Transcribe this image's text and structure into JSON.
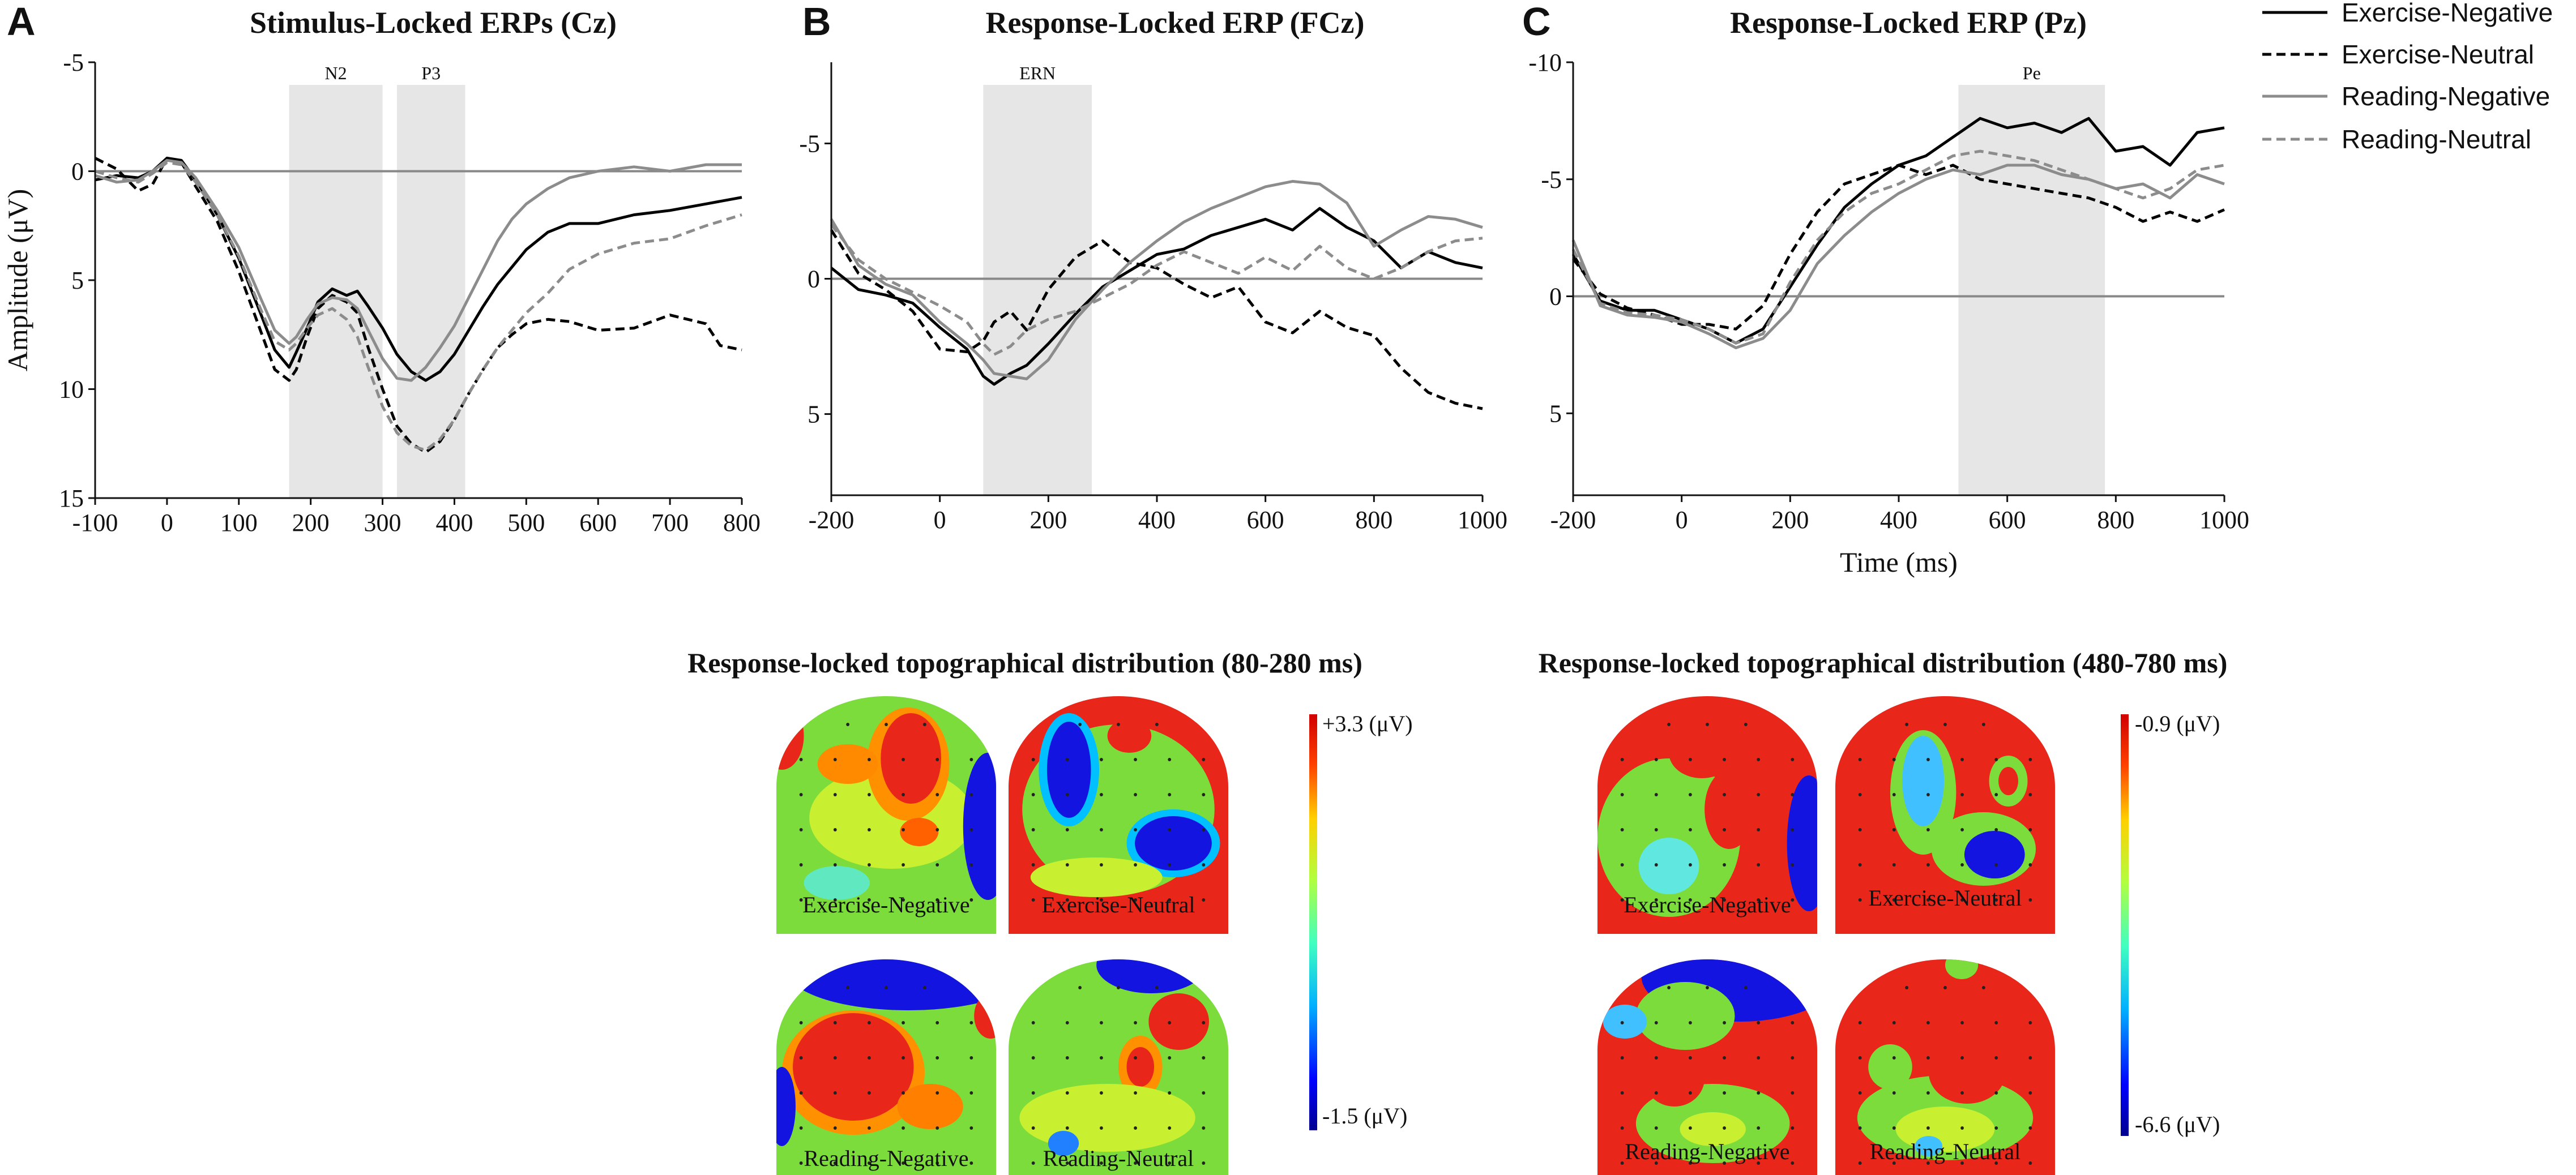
{
  "chart_data": [
    {
      "panel_letter": "A",
      "type": "line",
      "title": "Stimulus-Locked ERPs (Cz)",
      "xlabel": "",
      "ylabel": "Amplitude (μV)",
      "xlim": [
        -100,
        800
      ],
      "ylim": [
        -5,
        15
      ],
      "y_inverted": true,
      "xticks": [
        "-100",
        "0",
        "100",
        "200",
        "300",
        "400",
        "500",
        "600",
        "700",
        "800"
      ],
      "yticks": [
        "-5",
        "0",
        "5",
        "10",
        "15"
      ],
      "xtick_values": [
        -100,
        0,
        100,
        200,
        300,
        400,
        500,
        600,
        700,
        800
      ],
      "ytick_values": [
        -5,
        0,
        5,
        10,
        15
      ],
      "windows": [
        {
          "label": "N2",
          "x0": 170,
          "x1": 300
        },
        {
          "label": "P3",
          "x0": 320,
          "x1": 415
        }
      ],
      "series": [
        {
          "name": "Exercise-Negative",
          "x": [
            -100,
            -70,
            -40,
            -20,
            0,
            20,
            40,
            70,
            100,
            130,
            150,
            170,
            180,
            195,
            210,
            230,
            250,
            265,
            280,
            300,
            320,
            340,
            360,
            380,
            400,
            420,
            440,
            460,
            480,
            500,
            530,
            560,
            600,
            650,
            700,
            750,
            800
          ],
          "y": [
            0.4,
            0.2,
            0.3,
            0.0,
            -0.6,
            -0.5,
            0.4,
            2.0,
            4.0,
            6.5,
            8.2,
            9.0,
            8.3,
            7.2,
            6.0,
            5.4,
            5.7,
            5.5,
            6.2,
            7.2,
            8.4,
            9.2,
            9.6,
            9.2,
            8.4,
            7.3,
            6.2,
            5.2,
            4.4,
            3.6,
            2.8,
            2.4,
            2.4,
            2.0,
            1.8,
            1.5,
            1.2
          ]
        },
        {
          "name": "Exercise-Neutral",
          "x": [
            -100,
            -70,
            -40,
            -20,
            0,
            20,
            40,
            70,
            100,
            130,
            150,
            170,
            180,
            195,
            210,
            230,
            250,
            265,
            280,
            300,
            320,
            340,
            360,
            380,
            400,
            420,
            440,
            460,
            480,
            500,
            530,
            560,
            600,
            650,
            700,
            750,
            770,
            800
          ],
          "y": [
            -0.6,
            -0.1,
            0.9,
            0.6,
            -0.6,
            -0.4,
            0.7,
            2.3,
            4.6,
            7.3,
            9.1,
            9.6,
            9.1,
            7.6,
            6.3,
            5.7,
            6.0,
            6.5,
            8.1,
            10.0,
            11.7,
            12.5,
            12.9,
            12.4,
            11.4,
            10.2,
            9.1,
            8.1,
            7.5,
            7.0,
            6.8,
            6.9,
            7.3,
            7.2,
            6.6,
            7.0,
            8.0,
            8.2
          ]
        },
        {
          "name": "Reading-Negative",
          "x": [
            -100,
            -70,
            -40,
            -20,
            0,
            20,
            40,
            70,
            100,
            130,
            150,
            170,
            180,
            195,
            210,
            230,
            250,
            265,
            280,
            300,
            320,
            340,
            360,
            380,
            400,
            420,
            440,
            460,
            480,
            500,
            530,
            560,
            600,
            650,
            700,
            750,
            800
          ],
          "y": [
            0.2,
            0.5,
            0.4,
            0.0,
            -0.5,
            -0.4,
            0.3,
            1.8,
            3.5,
            5.8,
            7.3,
            7.9,
            7.6,
            6.8,
            6.1,
            5.8,
            5.9,
            6.3,
            7.3,
            8.6,
            9.5,
            9.6,
            9.0,
            8.1,
            7.1,
            5.8,
            4.5,
            3.2,
            2.2,
            1.5,
            0.8,
            0.3,
            0.0,
            -0.2,
            0.0,
            -0.3,
            -0.3
          ]
        },
        {
          "name": "Reading-Neutral",
          "x": [
            -100,
            -70,
            -40,
            -20,
            0,
            20,
            40,
            70,
            100,
            130,
            150,
            170,
            180,
            195,
            210,
            230,
            250,
            265,
            280,
            300,
            320,
            340,
            360,
            380,
            400,
            420,
            440,
            460,
            480,
            500,
            530,
            560,
            600,
            650,
            700,
            750,
            800
          ],
          "y": [
            0.0,
            0.3,
            0.5,
            0.1,
            -0.4,
            -0.3,
            0.5,
            2.0,
            3.9,
            6.3,
            7.8,
            8.2,
            7.9,
            7.2,
            6.6,
            6.3,
            6.8,
            7.6,
            9.0,
            10.8,
            12.0,
            12.6,
            12.8,
            12.3,
            11.4,
            10.2,
            9.1,
            8.1,
            7.3,
            6.5,
            5.6,
            4.5,
            3.8,
            3.3,
            3.1,
            2.5,
            2.0
          ]
        }
      ]
    },
    {
      "panel_letter": "B",
      "type": "line",
      "title": "Response-Locked ERP (FCz)",
      "xlabel": "",
      "ylabel": "",
      "xlim": [
        -200,
        1000
      ],
      "ylim": [
        -8,
        8
      ],
      "y_inverted": true,
      "xticks": [
        "-200",
        "0",
        "200",
        "400",
        "600",
        "800",
        "1000"
      ],
      "yticks": [
        "-5",
        "0",
        "5"
      ],
      "xtick_values": [
        -200,
        0,
        200,
        400,
        600,
        800,
        1000
      ],
      "ytick_values": [
        -5,
        0,
        5
      ],
      "windows": [
        {
          "label": "ERN",
          "x0": 80,
          "x1": 280
        }
      ],
      "series": [
        {
          "name": "Exercise-Negative",
          "x": [
            -200,
            -150,
            -100,
            -50,
            0,
            50,
            80,
            100,
            130,
            160,
            200,
            250,
            300,
            350,
            400,
            450,
            500,
            550,
            600,
            650,
            700,
            750,
            800,
            850,
            900,
            950,
            1000
          ],
          "y": [
            -0.4,
            0.4,
            0.6,
            0.9,
            1.8,
            2.6,
            3.6,
            3.9,
            3.5,
            3.2,
            2.4,
            1.3,
            0.3,
            -0.3,
            -0.9,
            -1.1,
            -1.6,
            -1.9,
            -2.2,
            -1.8,
            -2.6,
            -1.9,
            -1.4,
            -0.4,
            -1.0,
            -0.6,
            -0.4
          ]
        },
        {
          "name": "Exercise-Neutral",
          "x": [
            -200,
            -150,
            -100,
            -50,
            0,
            50,
            80,
            100,
            130,
            160,
            200,
            250,
            300,
            350,
            400,
            450,
            500,
            550,
            600,
            650,
            700,
            750,
            800,
            850,
            900,
            950,
            1000
          ],
          "y": [
            -1.8,
            -0.2,
            0.4,
            1.2,
            2.6,
            2.7,
            2.3,
            1.6,
            1.2,
            1.9,
            0.4,
            -0.8,
            -1.4,
            -0.6,
            -0.4,
            0.2,
            0.7,
            0.3,
            1.6,
            2.0,
            1.2,
            1.8,
            2.1,
            3.3,
            4.2,
            4.6,
            4.8
          ]
        },
        {
          "name": "Reading-Negative",
          "x": [
            -200,
            -150,
            -100,
            -50,
            0,
            50,
            80,
            100,
            130,
            160,
            200,
            250,
            300,
            350,
            400,
            450,
            500,
            550,
            600,
            650,
            700,
            750,
            800,
            850,
            900,
            950,
            1000
          ],
          "y": [
            -2.2,
            -0.5,
            0.2,
            0.6,
            1.6,
            2.4,
            3.0,
            3.5,
            3.6,
            3.7,
            3.0,
            1.5,
            0.4,
            -0.6,
            -1.4,
            -2.1,
            -2.6,
            -3.0,
            -3.4,
            -3.6,
            -3.5,
            -2.8,
            -1.2,
            -1.8,
            -2.3,
            -2.2,
            -1.9
          ]
        },
        {
          "name": "Reading-Neutral",
          "x": [
            -200,
            -150,
            -100,
            -50,
            0,
            50,
            80,
            100,
            130,
            160,
            200,
            250,
            300,
            350,
            400,
            450,
            500,
            550,
            600,
            650,
            700,
            750,
            800,
            850,
            900,
            950,
            1000
          ],
          "y": [
            -2.0,
            -0.7,
            0.0,
            0.5,
            1.0,
            1.6,
            2.4,
            2.8,
            2.5,
            1.9,
            1.5,
            1.2,
            0.7,
            0.2,
            -0.5,
            -1.0,
            -0.6,
            -0.2,
            -0.8,
            -0.3,
            -1.2,
            -0.4,
            0.0,
            -0.4,
            -1.0,
            -1.4,
            -1.5
          ]
        }
      ]
    },
    {
      "panel_letter": "C",
      "type": "line",
      "title": "Response-Locked ERP (Pz)",
      "xlabel": "Time (ms)",
      "ylabel": "",
      "xlim": [
        -200,
        1000
      ],
      "ylim": [
        -10,
        8.5
      ],
      "y_inverted": true,
      "xticks": [
        "-200",
        "0",
        "200",
        "400",
        "600",
        "800",
        "1000"
      ],
      "yticks": [
        "-10",
        "-5",
        "0",
        "5"
      ],
      "xtick_values": [
        -200,
        0,
        200,
        400,
        600,
        800,
        1000
      ],
      "ytick_values": [
        -10,
        -5,
        0,
        5
      ],
      "windows": [
        {
          "label": "Pe",
          "x0": 510,
          "x1": 780
        }
      ],
      "series": [
        {
          "name": "Exercise-Negative",
          "x": [
            -200,
            -150,
            -100,
            -50,
            0,
            50,
            100,
            150,
            200,
            250,
            300,
            350,
            400,
            450,
            500,
            550,
            600,
            650,
            700,
            750,
            800,
            850,
            900,
            950,
            1000
          ],
          "y": [
            -1.8,
            0.2,
            0.6,
            0.6,
            1.0,
            1.4,
            2.0,
            1.4,
            -0.4,
            -2.2,
            -3.8,
            -4.8,
            -5.6,
            -6.0,
            -6.8,
            -7.6,
            -7.2,
            -7.4,
            -7.0,
            -7.6,
            -6.2,
            -6.4,
            -5.6,
            -7.0,
            -7.2
          ]
        },
        {
          "name": "Exercise-Neutral",
          "x": [
            -200,
            -150,
            -100,
            -50,
            0,
            50,
            100,
            150,
            200,
            250,
            300,
            350,
            400,
            450,
            500,
            550,
            600,
            650,
            700,
            750,
            800,
            850,
            900,
            950,
            1000
          ],
          "y": [
            -1.6,
            -0.1,
            0.5,
            0.8,
            1.2,
            1.2,
            1.4,
            0.4,
            -1.8,
            -3.6,
            -4.8,
            -5.2,
            -5.6,
            -5.2,
            -5.6,
            -5.0,
            -4.8,
            -4.6,
            -4.4,
            -4.2,
            -3.8,
            -3.2,
            -3.6,
            -3.2,
            -3.7
          ]
        },
        {
          "name": "Reading-Negative",
          "x": [
            -200,
            -150,
            -100,
            -50,
            0,
            50,
            100,
            150,
            200,
            250,
            300,
            350,
            400,
            450,
            500,
            550,
            600,
            650,
            700,
            750,
            800,
            850,
            900,
            950,
            1000
          ],
          "y": [
            -2.4,
            0.4,
            0.8,
            0.9,
            1.1,
            1.6,
            2.2,
            1.8,
            0.6,
            -1.4,
            -2.6,
            -3.6,
            -4.4,
            -5.0,
            -5.4,
            -5.2,
            -5.6,
            -5.6,
            -5.2,
            -5.0,
            -4.6,
            -4.8,
            -4.2,
            -5.2,
            -4.8
          ]
        },
        {
          "name": "Reading-Neutral",
          "x": [
            -200,
            -150,
            -100,
            -50,
            0,
            50,
            100,
            150,
            200,
            250,
            300,
            350,
            400,
            450,
            500,
            550,
            600,
            650,
            700,
            750,
            800,
            850,
            900,
            950,
            1000
          ],
          "y": [
            -2.0,
            0.3,
            0.7,
            0.8,
            1.0,
            1.4,
            2.0,
            1.6,
            -0.6,
            -2.4,
            -3.6,
            -4.4,
            -4.8,
            -5.4,
            -6.0,
            -6.2,
            -6.0,
            -5.8,
            -5.4,
            -5.0,
            -4.6,
            -4.2,
            -4.6,
            -5.4,
            -5.6
          ]
        }
      ]
    }
  ],
  "legend": {
    "placement": "top-right",
    "entries": [
      "Exercise-Negative",
      "Exercise-Neutral",
      "Reading-Negative",
      "Reading-Neutral"
    ]
  },
  "series_styles": {
    "Exercise-Negative": {
      "color": "#000000",
      "dash": "solid"
    },
    "Exercise-Neutral": {
      "color": "#000000",
      "dash": "dashed"
    },
    "Reading-Negative": {
      "color": "#8c8c8c",
      "dash": "solid"
    },
    "Reading-Neutral": {
      "color": "#8c8c8c",
      "dash": "dashed"
    }
  },
  "colors": {
    "window_shade": "#e6e6e6",
    "topo_red": "#e8261a",
    "topo_blue": "#1414e0",
    "topo_green": "#7cdc3c"
  },
  "topography": {
    "groups": [
      {
        "title": "Response-locked topographical distribution (80-280 ms)",
        "scale_max": "+3.3 (μV)",
        "scale_min": "-1.5 (μV)",
        "maps": [
          {
            "label": "Exercise-Negative",
            "mix": [
              0.3,
              0.55,
              0.15
            ]
          },
          {
            "label": "Exercise-Neutral",
            "mix": [
              0.45,
              0.25,
              0.3
            ]
          },
          {
            "label": "Reading-Negative",
            "mix": [
              0.35,
              0.45,
              0.2
            ]
          },
          {
            "label": "Reading-Neutral",
            "mix": [
              0.15,
              0.75,
              0.1
            ]
          }
        ]
      },
      {
        "title": "Response-locked topographical distribution (480-780 ms)",
        "scale_max": "-0.9 (μV)",
        "scale_min": "-6.6 (μV)",
        "maps": [
          {
            "label": "Exercise-Negative",
            "mix": [
              0.45,
              0.45,
              0.1
            ]
          },
          {
            "label": "Exercise-Neutral",
            "mix": [
              0.65,
              0.25,
              0.1
            ]
          },
          {
            "label": "Reading-Negative",
            "mix": [
              0.55,
              0.3,
              0.15
            ]
          },
          {
            "label": "Reading-Neutral",
            "mix": [
              0.6,
              0.35,
              0.05
            ]
          }
        ]
      }
    ]
  }
}
